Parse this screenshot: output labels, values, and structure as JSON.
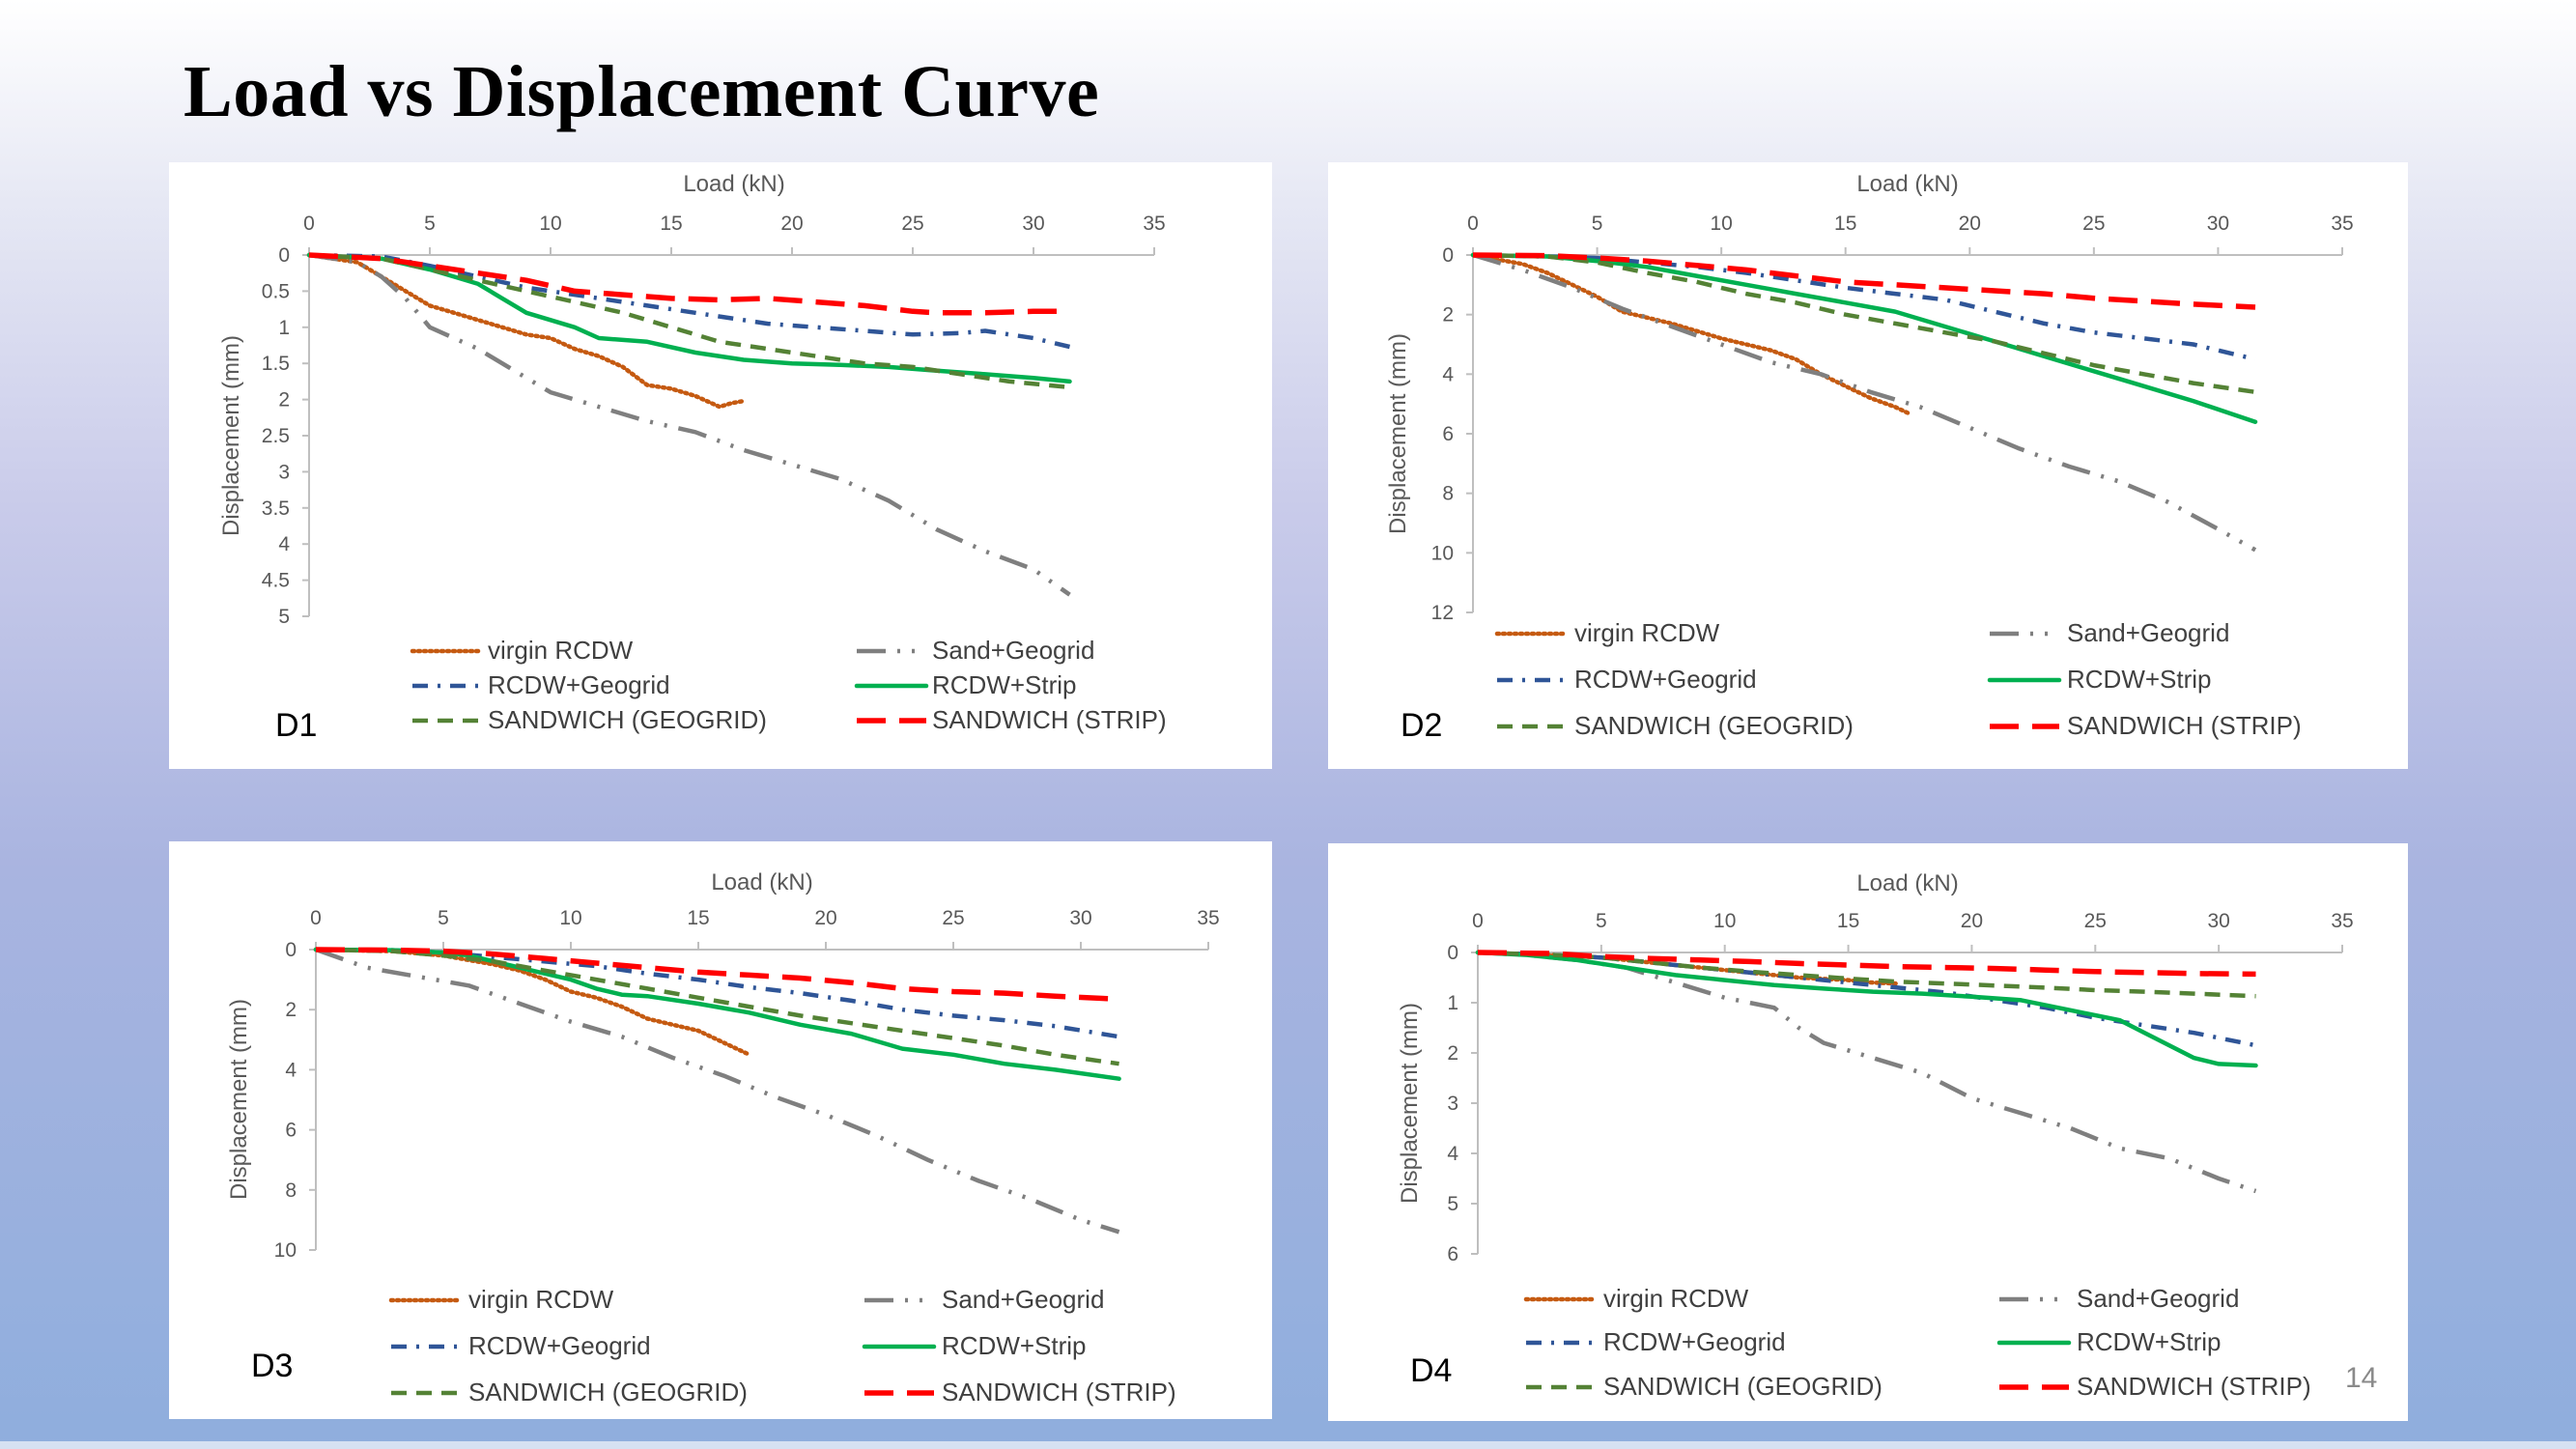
{
  "slide": {
    "title": "Load vs Displacement Curve",
    "page_number": "14"
  },
  "series_styles": [
    {
      "color": "#c55a11",
      "dash": "dot"
    },
    {
      "color": "#7f7f7f",
      "dash": "longdashdotdot"
    },
    {
      "color": "#2f5597",
      "dash": "dashdot"
    },
    {
      "color": "#00b050",
      "dash": "solid"
    },
    {
      "color": "#548235",
      "dash": "dash"
    },
    {
      "color": "#ff0000",
      "dash": "longdash"
    }
  ],
  "chart_data": [
    {
      "panel_label": "D1",
      "type": "line",
      "xlabel": "Load (kN)",
      "ylabel": "Displacement (mm)",
      "xlim": [
        0,
        35
      ],
      "ylim": [
        0,
        5
      ],
      "y_inverted": true,
      "x_axis_position": "top",
      "grid": false,
      "legend_position": "bottom",
      "xticks": [
        0,
        5,
        10,
        15,
        20,
        25,
        30,
        35
      ],
      "yticks": [
        0,
        0.5,
        1,
        1.5,
        2,
        2.5,
        3,
        3.5,
        4,
        4.5,
        5
      ],
      "series": [
        {
          "name": "virgin RCDW",
          "x": [
            0,
            2,
            3,
            4,
            5,
            6,
            8,
            9,
            10,
            11,
            12,
            13,
            14,
            15,
            16,
            17,
            17.5,
            18
          ],
          "y": [
            0,
            0.1,
            0.3,
            0.5,
            0.7,
            0.8,
            1.0,
            1.1,
            1.15,
            1.3,
            1.4,
            1.55,
            1.8,
            1.85,
            1.95,
            2.1,
            2.05,
            2.02
          ]
        },
        {
          "name": "Sand+Geogrid",
          "x": [
            0,
            2,
            3,
            4,
            5,
            7,
            8,
            9,
            10,
            12,
            14,
            16,
            18,
            20,
            22,
            24,
            26,
            28,
            30,
            31.5
          ],
          "y": [
            0,
            0.1,
            0.3,
            0.6,
            1.0,
            1.3,
            1.5,
            1.7,
            1.9,
            2.1,
            2.3,
            2.45,
            2.7,
            2.9,
            3.1,
            3.4,
            3.8,
            4.1,
            4.35,
            4.7
          ]
        },
        {
          "name": "RCDW+Geogrid",
          "x": [
            0,
            3,
            5,
            7,
            9,
            11,
            13,
            15,
            17,
            19,
            21,
            23,
            25,
            27,
            28,
            30,
            31.5
          ],
          "y": [
            0,
            0.02,
            0.15,
            0.3,
            0.45,
            0.55,
            0.65,
            0.75,
            0.85,
            0.95,
            1.0,
            1.05,
            1.1,
            1.08,
            1.05,
            1.15,
            1.27
          ]
        },
        {
          "name": "RCDW+Strip",
          "x": [
            0,
            3,
            5,
            6,
            7,
            8,
            9,
            10,
            11,
            12,
            14,
            16,
            18,
            20,
            22,
            24,
            26,
            28,
            30,
            31.5
          ],
          "y": [
            0,
            0.05,
            0.2,
            0.3,
            0.4,
            0.6,
            0.8,
            0.9,
            1.0,
            1.15,
            1.2,
            1.35,
            1.45,
            1.5,
            1.52,
            1.55,
            1.6,
            1.65,
            1.7,
            1.75
          ]
        },
        {
          "name": "SANDWICH (GEOGRID)",
          "x": [
            0,
            3,
            5,
            7,
            9,
            11,
            13,
            15,
            17,
            19,
            21,
            23,
            25,
            27,
            29,
            31.5
          ],
          "y": [
            0,
            0.05,
            0.2,
            0.35,
            0.5,
            0.65,
            0.8,
            1.0,
            1.2,
            1.3,
            1.4,
            1.5,
            1.55,
            1.65,
            1.75,
            1.83
          ]
        },
        {
          "name": "SANDWICH (STRIP)",
          "x": [
            0,
            3,
            5,
            7,
            9,
            11,
            13,
            15,
            17,
            19,
            21,
            23,
            25,
            26,
            28,
            30,
            31.5
          ],
          "y": [
            0,
            0.05,
            0.15,
            0.25,
            0.35,
            0.5,
            0.55,
            0.6,
            0.62,
            0.6,
            0.65,
            0.7,
            0.78,
            0.8,
            0.8,
            0.78,
            0.78
          ]
        }
      ]
    },
    {
      "panel_label": "D2",
      "type": "line",
      "xlabel": "Load (kN)",
      "ylabel": "Displacement (mm)",
      "xlim": [
        0,
        35
      ],
      "ylim": [
        0,
        12
      ],
      "y_inverted": true,
      "x_axis_position": "top",
      "grid": false,
      "legend_position": "bottom",
      "xticks": [
        0,
        5,
        10,
        15,
        20,
        25,
        30,
        35
      ],
      "yticks": [
        0,
        2,
        4,
        6,
        8,
        10,
        12
      ],
      "series": [
        {
          "name": "virgin RCDW",
          "x": [
            0,
            2,
            3,
            4,
            5,
            6,
            8,
            10,
            12,
            13,
            14,
            15,
            16,
            17,
            17.5
          ],
          "y": [
            0,
            0.3,
            0.6,
            1.0,
            1.4,
            1.9,
            2.3,
            2.8,
            3.2,
            3.5,
            4.0,
            4.4,
            4.8,
            5.1,
            5.3
          ]
        },
        {
          "name": "Sand+Geogrid",
          "x": [
            0,
            2,
            4,
            6,
            8,
            10,
            12,
            14,
            16,
            18,
            20,
            22,
            24,
            26,
            28,
            30,
            31.5
          ],
          "y": [
            0,
            0.5,
            1.1,
            1.8,
            2.4,
            3.0,
            3.6,
            4.0,
            4.6,
            5.1,
            5.8,
            6.5,
            7.1,
            7.6,
            8.3,
            9.2,
            9.9
          ]
        },
        {
          "name": "RCDW+Geogrid",
          "x": [
            0,
            3,
            5,
            7,
            9,
            11,
            13,
            15,
            17,
            19,
            21,
            23,
            25,
            27,
            29,
            31.5
          ],
          "y": [
            0,
            0.05,
            0.1,
            0.25,
            0.4,
            0.6,
            0.85,
            1.1,
            1.3,
            1.5,
            1.9,
            2.3,
            2.6,
            2.8,
            3.0,
            3.5
          ]
        },
        {
          "name": "RCDW+Strip",
          "x": [
            0,
            3,
            5,
            7,
            9,
            11,
            13,
            15,
            17,
            19,
            21,
            23,
            25,
            27,
            29,
            31.5
          ],
          "y": [
            0,
            0.05,
            0.2,
            0.4,
            0.7,
            1.0,
            1.3,
            1.6,
            1.9,
            2.4,
            2.9,
            3.4,
            3.9,
            4.4,
            4.9,
            5.6
          ]
        },
        {
          "name": "SANDWICH (GEOGRID)",
          "x": [
            0,
            3,
            5,
            7,
            9,
            11,
            13,
            15,
            17,
            19,
            21,
            23,
            25,
            27,
            29,
            31.5
          ],
          "y": [
            0,
            0.05,
            0.25,
            0.6,
            0.9,
            1.3,
            1.6,
            2.0,
            2.3,
            2.6,
            2.9,
            3.3,
            3.7,
            4.0,
            4.3,
            4.6
          ]
        },
        {
          "name": "SANDWICH (STRIP)",
          "x": [
            0,
            3,
            5,
            7,
            9,
            11,
            13,
            15,
            17,
            19,
            21,
            23,
            25,
            27,
            29,
            31.5
          ],
          "y": [
            0,
            0.02,
            0.1,
            0.2,
            0.35,
            0.5,
            0.7,
            0.9,
            1.0,
            1.1,
            1.2,
            1.3,
            1.45,
            1.55,
            1.65,
            1.75
          ]
        }
      ]
    },
    {
      "panel_label": "D3",
      "type": "line",
      "xlabel": "Load (kN)",
      "ylabel": "Displacement (mm)",
      "xlim": [
        0,
        35
      ],
      "ylim": [
        0,
        10
      ],
      "y_inverted": true,
      "x_axis_position": "top",
      "grid": false,
      "legend_position": "bottom",
      "xticks": [
        0,
        5,
        10,
        15,
        20,
        25,
        30,
        35
      ],
      "yticks": [
        0,
        2,
        4,
        6,
        8,
        10
      ],
      "series": [
        {
          "name": "virgin RCDW",
          "x": [
            0,
            3,
            5,
            6,
            7,
            8,
            9,
            10,
            11,
            12,
            13,
            14,
            15,
            16,
            17
          ],
          "y": [
            0,
            0.05,
            0.2,
            0.35,
            0.5,
            0.7,
            1.0,
            1.4,
            1.6,
            1.9,
            2.3,
            2.5,
            2.7,
            3.1,
            3.5
          ]
        },
        {
          "name": "Sand+Geogrid",
          "x": [
            0,
            2,
            4,
            6,
            8,
            10,
            12,
            14,
            16,
            18,
            20,
            22,
            24,
            26,
            28,
            30,
            31.5
          ],
          "y": [
            0,
            0.6,
            0.9,
            1.2,
            1.8,
            2.4,
            2.9,
            3.6,
            4.2,
            4.9,
            5.5,
            6.2,
            7.0,
            7.7,
            8.3,
            9.0,
            9.4
          ]
        },
        {
          "name": "RCDW+Geogrid",
          "x": [
            0,
            3,
            5,
            7,
            9,
            11,
            13,
            15,
            17,
            19,
            21,
            23,
            25,
            27,
            29,
            31.5
          ],
          "y": [
            0,
            0.02,
            0.1,
            0.25,
            0.4,
            0.55,
            0.8,
            1.0,
            1.25,
            1.45,
            1.7,
            2.0,
            2.2,
            2.35,
            2.55,
            2.9
          ]
        },
        {
          "name": "RCDW+Strip",
          "x": [
            0,
            3,
            5,
            6,
            7,
            8,
            9,
            10,
            11,
            12,
            13,
            15,
            17,
            19,
            21,
            23,
            25,
            27,
            29,
            31.5
          ],
          "y": [
            0,
            0.02,
            0.1,
            0.2,
            0.4,
            0.6,
            0.8,
            1.0,
            1.3,
            1.5,
            1.55,
            1.8,
            2.1,
            2.5,
            2.8,
            3.3,
            3.5,
            3.8,
            4.0,
            4.3
          ]
        },
        {
          "name": "SANDWICH (GEOGRID)",
          "x": [
            0,
            3,
            5,
            7,
            9,
            11,
            13,
            15,
            17,
            19,
            21,
            23,
            25,
            27,
            29,
            31.5
          ],
          "y": [
            0,
            0.05,
            0.2,
            0.4,
            0.7,
            1.0,
            1.3,
            1.6,
            1.9,
            2.2,
            2.45,
            2.7,
            2.95,
            3.2,
            3.5,
            3.8
          ]
        },
        {
          "name": "SANDWICH (STRIP)",
          "x": [
            0,
            3,
            5,
            7,
            9,
            11,
            13,
            15,
            17,
            19,
            21,
            23,
            25,
            27,
            29,
            31.5
          ],
          "y": [
            0,
            0.02,
            0.05,
            0.15,
            0.3,
            0.45,
            0.6,
            0.75,
            0.85,
            0.95,
            1.1,
            1.3,
            1.4,
            1.45,
            1.55,
            1.65
          ]
        }
      ]
    },
    {
      "panel_label": "D4",
      "type": "line",
      "xlabel": "Load (kN)",
      "ylabel": "Displacement (mm)",
      "xlim": [
        0,
        35
      ],
      "ylim": [
        0,
        6
      ],
      "y_inverted": true,
      "x_axis_position": "top",
      "grid": false,
      "legend_position": "bottom",
      "xticks": [
        0,
        5,
        10,
        15,
        20,
        25,
        30,
        35
      ],
      "yticks": [
        0,
        1,
        2,
        3,
        4,
        5,
        6
      ],
      "series": [
        {
          "name": "virgin RCDW",
          "x": [
            0,
            3,
            5,
            7,
            9,
            11,
            13,
            15,
            16,
            17
          ],
          "y": [
            0,
            0.05,
            0.1,
            0.2,
            0.3,
            0.4,
            0.5,
            0.55,
            0.6,
            0.62
          ]
        },
        {
          "name": "Sand+Geogrid",
          "x": [
            0,
            2,
            4,
            6,
            8,
            10,
            12,
            13,
            14,
            16,
            18,
            20,
            22,
            24,
            26,
            28,
            30,
            31.5
          ],
          "y": [
            0,
            0.05,
            0.15,
            0.3,
            0.6,
            0.9,
            1.1,
            1.5,
            1.8,
            2.1,
            2.4,
            2.9,
            3.2,
            3.5,
            3.9,
            4.1,
            4.5,
            4.75
          ]
        },
        {
          "name": "RCDW+Geogrid",
          "x": [
            0,
            3,
            5,
            7,
            9,
            11,
            13,
            15,
            17,
            19,
            21,
            23,
            25,
            27,
            29,
            31.5
          ],
          "y": [
            0,
            0.05,
            0.1,
            0.2,
            0.3,
            0.4,
            0.5,
            0.6,
            0.7,
            0.8,
            0.95,
            1.1,
            1.3,
            1.45,
            1.6,
            1.85
          ]
        },
        {
          "name": "RCDW+Strip",
          "x": [
            0,
            2,
            4,
            6,
            8,
            10,
            12,
            14,
            16,
            18,
            20,
            22,
            24,
            26,
            27,
            28,
            29,
            30,
            31.5
          ],
          "y": [
            0,
            0.05,
            0.15,
            0.3,
            0.45,
            0.55,
            0.65,
            0.72,
            0.78,
            0.82,
            0.88,
            0.95,
            1.15,
            1.35,
            1.6,
            1.85,
            2.1,
            2.22,
            2.25
          ]
        },
        {
          "name": "SANDWICH (GEOGRID)",
          "x": [
            0,
            3,
            5,
            7,
            9,
            11,
            13,
            15,
            17,
            19,
            21,
            23,
            25,
            27,
            29,
            31.5
          ],
          "y": [
            0,
            0.05,
            0.1,
            0.2,
            0.3,
            0.38,
            0.45,
            0.52,
            0.58,
            0.62,
            0.66,
            0.7,
            0.75,
            0.78,
            0.82,
            0.87
          ]
        },
        {
          "name": "SANDWICH (STRIP)",
          "x": [
            0,
            3,
            5,
            7,
            9,
            11,
            13,
            15,
            17,
            19,
            21,
            23,
            25,
            27,
            29,
            31.5
          ],
          "y": [
            0,
            0.02,
            0.08,
            0.12,
            0.15,
            0.18,
            0.22,
            0.25,
            0.28,
            0.3,
            0.32,
            0.35,
            0.38,
            0.4,
            0.42,
            0.43
          ]
        }
      ]
    }
  ]
}
